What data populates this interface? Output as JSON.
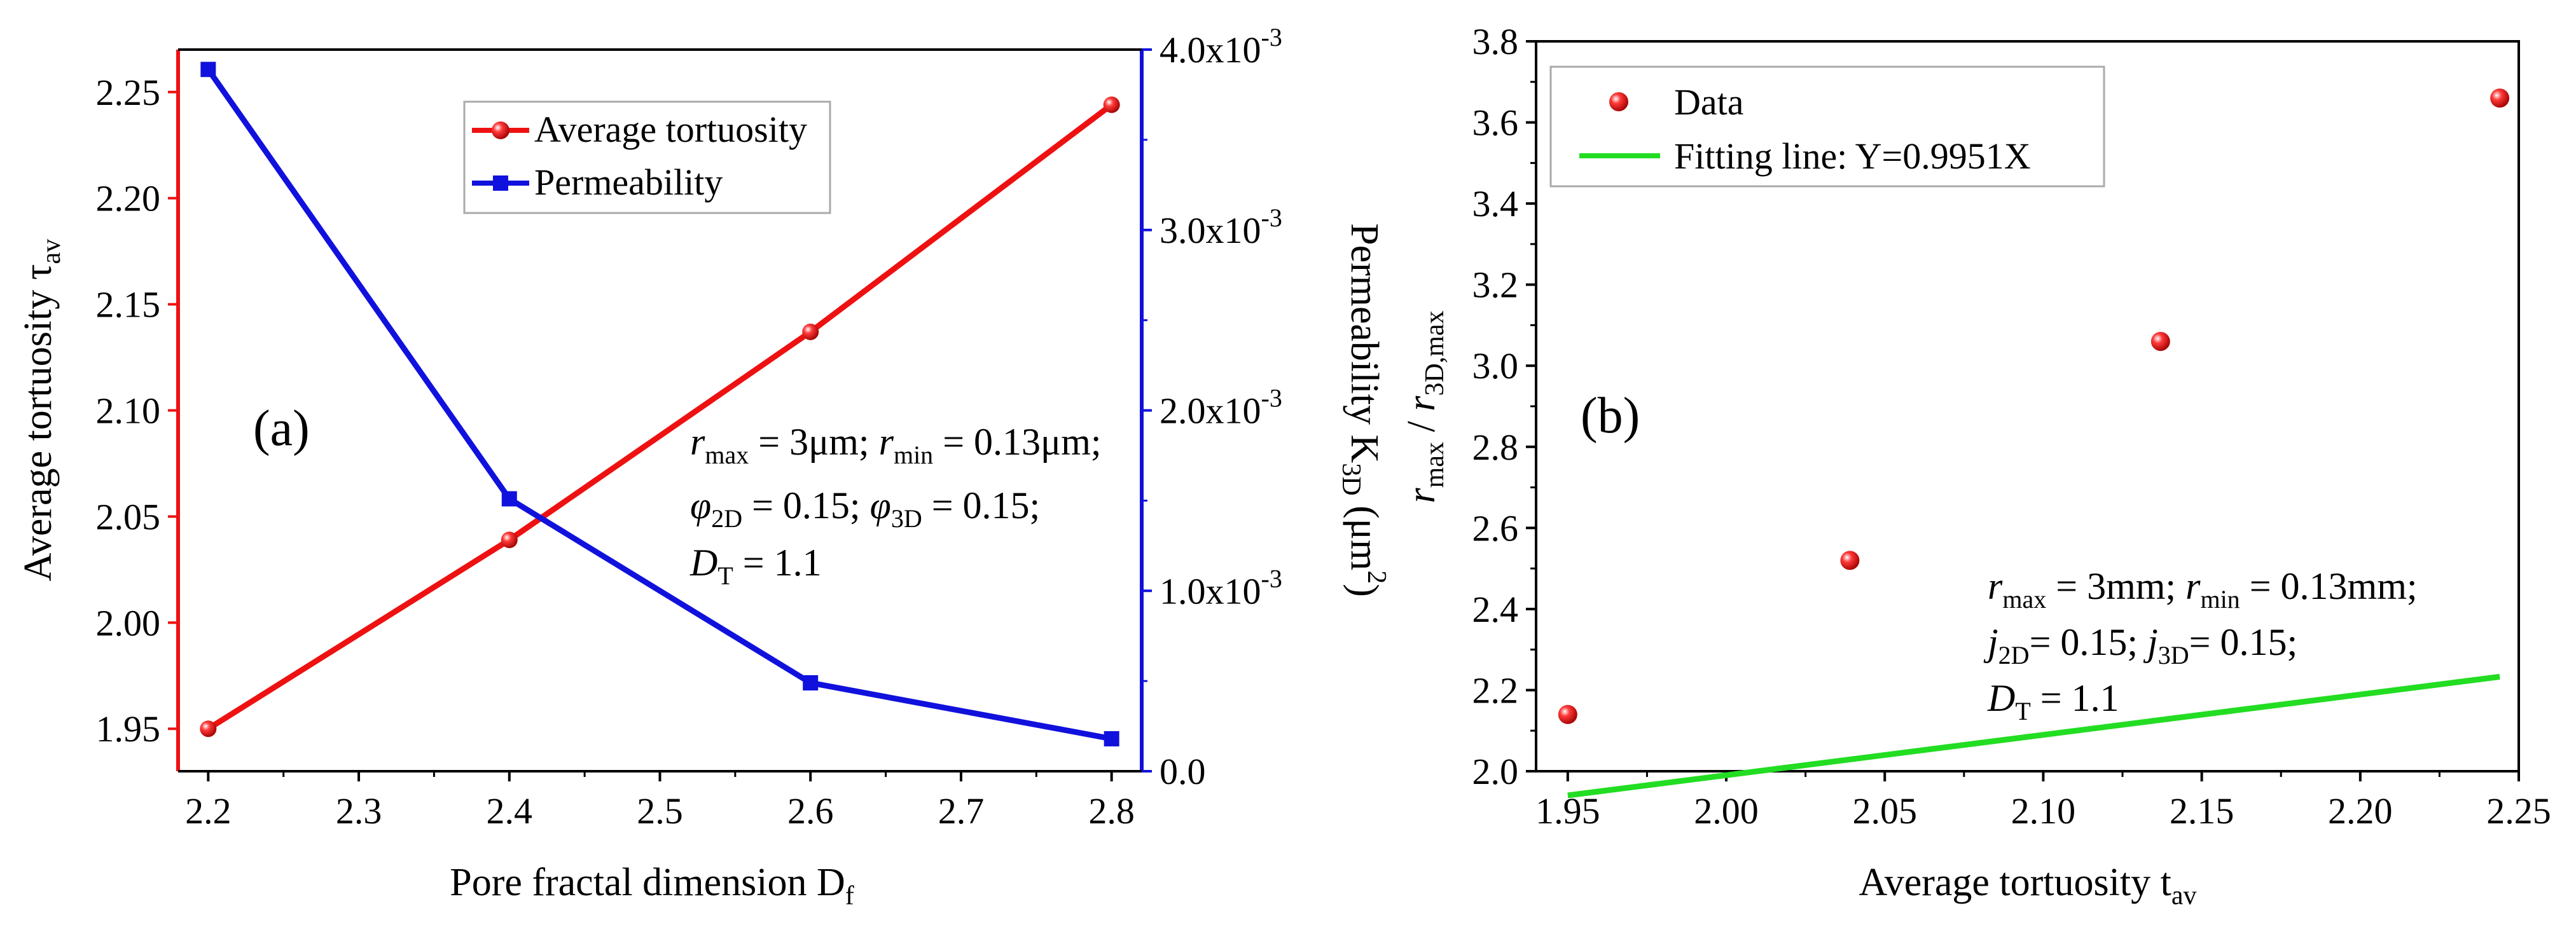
{
  "chart_data": [
    {
      "panel": "(a)",
      "type": "line",
      "x": [
        2.2,
        2.4,
        2.6,
        2.8
      ],
      "xlim": [
        2.18,
        2.82
      ],
      "xticks": [
        "2.2",
        "2.3",
        "2.4",
        "2.5",
        "2.6",
        "2.7",
        "2.8"
      ],
      "xlabel": "Pore fractal dimension D",
      "xlabel_sub": "f",
      "series": [
        {
          "name": "Average tortuosity",
          "axis": "left",
          "color": "#ee1111",
          "marker": "sphere",
          "values": [
            1.95,
            2.039,
            2.137,
            2.244
          ]
        },
        {
          "name": "Permeability",
          "axis": "right",
          "color": "#1111dd",
          "marker": "square",
          "values": [
            0.00389,
            0.00151,
            0.00049,
            0.00018
          ]
        }
      ],
      "ylim_left": [
        1.93,
        2.27
      ],
      "yticks_left": [
        "1.95",
        "2.00",
        "2.05",
        "2.10",
        "2.15",
        "2.20",
        "2.25"
      ],
      "ylabel_left": "Average tortuosity τ",
      "ylabel_left_sub": "av",
      "ylim_right": [
        0,
        0.004
      ],
      "yticks_right": [
        {
          "mant": "0.0",
          "exp": ""
        },
        {
          "mant": "1.0x10",
          "exp": "-3"
        },
        {
          "mant": "2.0x10",
          "exp": "-3"
        },
        {
          "mant": "3.0x10",
          "exp": "-3"
        },
        {
          "mant": "4.0x10",
          "exp": "-3"
        }
      ],
      "ylabel_right": {
        "pre": "Permeability K",
        "sub": "3D",
        "mid": " (μm",
        "sup": "2",
        "post": ")"
      },
      "annotation": {
        "l1": {
          "a": "r",
          "a_sub": "max",
          "b": " = 3μm; ",
          "c": "r",
          "c_sub": "min",
          "d": " = 0.13μm;"
        },
        "l2": {
          "a": "φ",
          "a_sub": "2D",
          "b": " = 0.15; ",
          "c": "φ",
          "c_sub": "3D",
          "d": " = 0.15;"
        },
        "l3": {
          "a": "D",
          "a_sub": "T",
          "b": " = 1.1"
        }
      }
    },
    {
      "panel": "(b)",
      "type": "scatter",
      "x": [
        1.95,
        2.039,
        2.137,
        2.244
      ],
      "y": [
        2.14,
        2.52,
        3.06,
        3.66
      ],
      "xlim": [
        1.94,
        2.25
      ],
      "xticks": [
        "1.95",
        "2.00",
        "2.05",
        "2.10",
        "2.15",
        "2.20",
        "2.25"
      ],
      "ylim": [
        2.0,
        3.8
      ],
      "yticks": [
        "2.0",
        "2.2",
        "2.4",
        "2.6",
        "2.8",
        "3.0",
        "3.2",
        "3.4",
        "3.6",
        "3.8"
      ],
      "xlabel": "Average tortuosity t",
      "xlabel_sub": "av",
      "ylabel": {
        "a": "r",
        "a_sub": "max",
        "b": " / ",
        "c": "r",
        "c_sub": "3D,max"
      },
      "data_series": {
        "name": "Data",
        "color": "#ee1111"
      },
      "fit": {
        "name": "Fitting line: Y=0.9951X",
        "slope": 0.9951,
        "color": "#22dd22",
        "x_range": [
          1.95,
          2.244
        ]
      },
      "annotation": {
        "l1": {
          "a": "r",
          "a_sub": "max",
          "b": " = 3mm; ",
          "c": "r",
          "c_sub": "min",
          "d": " = 0.13mm;"
        },
        "l2": {
          "a": "j",
          "a_sub": "2D",
          "b": "= 0.15; ",
          "c": "j",
          "c_sub": "3D",
          "d": "= 0.15;"
        },
        "l3": {
          "a": "D",
          "a_sub": "T",
          "b": " = 1.1"
        }
      }
    }
  ]
}
